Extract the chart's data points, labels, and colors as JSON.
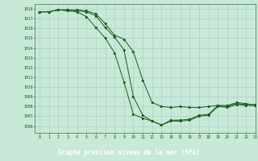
{
  "title": "Graphe pression niveau de la mer (hPa)",
  "bg_color": "#c8e8d8",
  "label_bg_color": "#2a7a2a",
  "grid_color": "#a8ccc0",
  "line_color": "#1a5c1a",
  "xlim": [
    -0.5,
    23
  ],
  "ylim": [
    1005.3,
    1018.5
  ],
  "xticks": [
    0,
    1,
    2,
    3,
    4,
    5,
    6,
    7,
    8,
    9,
    10,
    11,
    12,
    13,
    14,
    15,
    16,
    17,
    18,
    19,
    20,
    21,
    22,
    23
  ],
  "yticks": [
    1006,
    1007,
    1008,
    1009,
    1010,
    1011,
    1012,
    1013,
    1014,
    1015,
    1016,
    1017,
    1018
  ],
  "line1_x": [
    0,
    1,
    2,
    3,
    4,
    5,
    6,
    7,
    8,
    9,
    10,
    11,
    12,
    13,
    14,
    15,
    16,
    17,
    18,
    19,
    20,
    21,
    22,
    23
  ],
  "line1_y": [
    1017.7,
    1017.7,
    1017.9,
    1017.8,
    1017.7,
    1017.2,
    1016.1,
    1015.0,
    1013.5,
    1010.5,
    1007.2,
    1006.8,
    1006.5,
    1006.1,
    1006.5,
    1006.5,
    1006.6,
    1007.0,
    1007.1,
    1008.0,
    1007.9,
    1008.2,
    1008.1,
    1008.1
  ],
  "line2_x": [
    0,
    1,
    2,
    3,
    4,
    5,
    6,
    7,
    8,
    9,
    10,
    11,
    12,
    13,
    14,
    15,
    16,
    17,
    18,
    19,
    20,
    21,
    22,
    23
  ],
  "line2_y": [
    1017.7,
    1017.7,
    1017.9,
    1017.9,
    1017.8,
    1017.7,
    1017.3,
    1016.1,
    1015.1,
    1013.8,
    1009.0,
    1007.1,
    1006.5,
    1006.1,
    1006.6,
    1006.6,
    1006.7,
    1007.1,
    1007.2,
    1008.1,
    1008.0,
    1008.3,
    1008.2,
    1008.2
  ],
  "line3_x": [
    0,
    1,
    2,
    3,
    4,
    5,
    6,
    7,
    8,
    9,
    10,
    11,
    12,
    13,
    14,
    15,
    16,
    17,
    18,
    19,
    20,
    21,
    22,
    23
  ],
  "line3_y": [
    1017.7,
    1017.7,
    1017.9,
    1017.9,
    1017.9,
    1017.8,
    1017.5,
    1016.5,
    1015.3,
    1014.9,
    1013.6,
    1010.7,
    1008.4,
    1008.0,
    1007.9,
    1008.0,
    1007.9,
    1007.9,
    1008.0,
    1008.1,
    1008.1,
    1008.4,
    1008.3,
    1008.1
  ]
}
